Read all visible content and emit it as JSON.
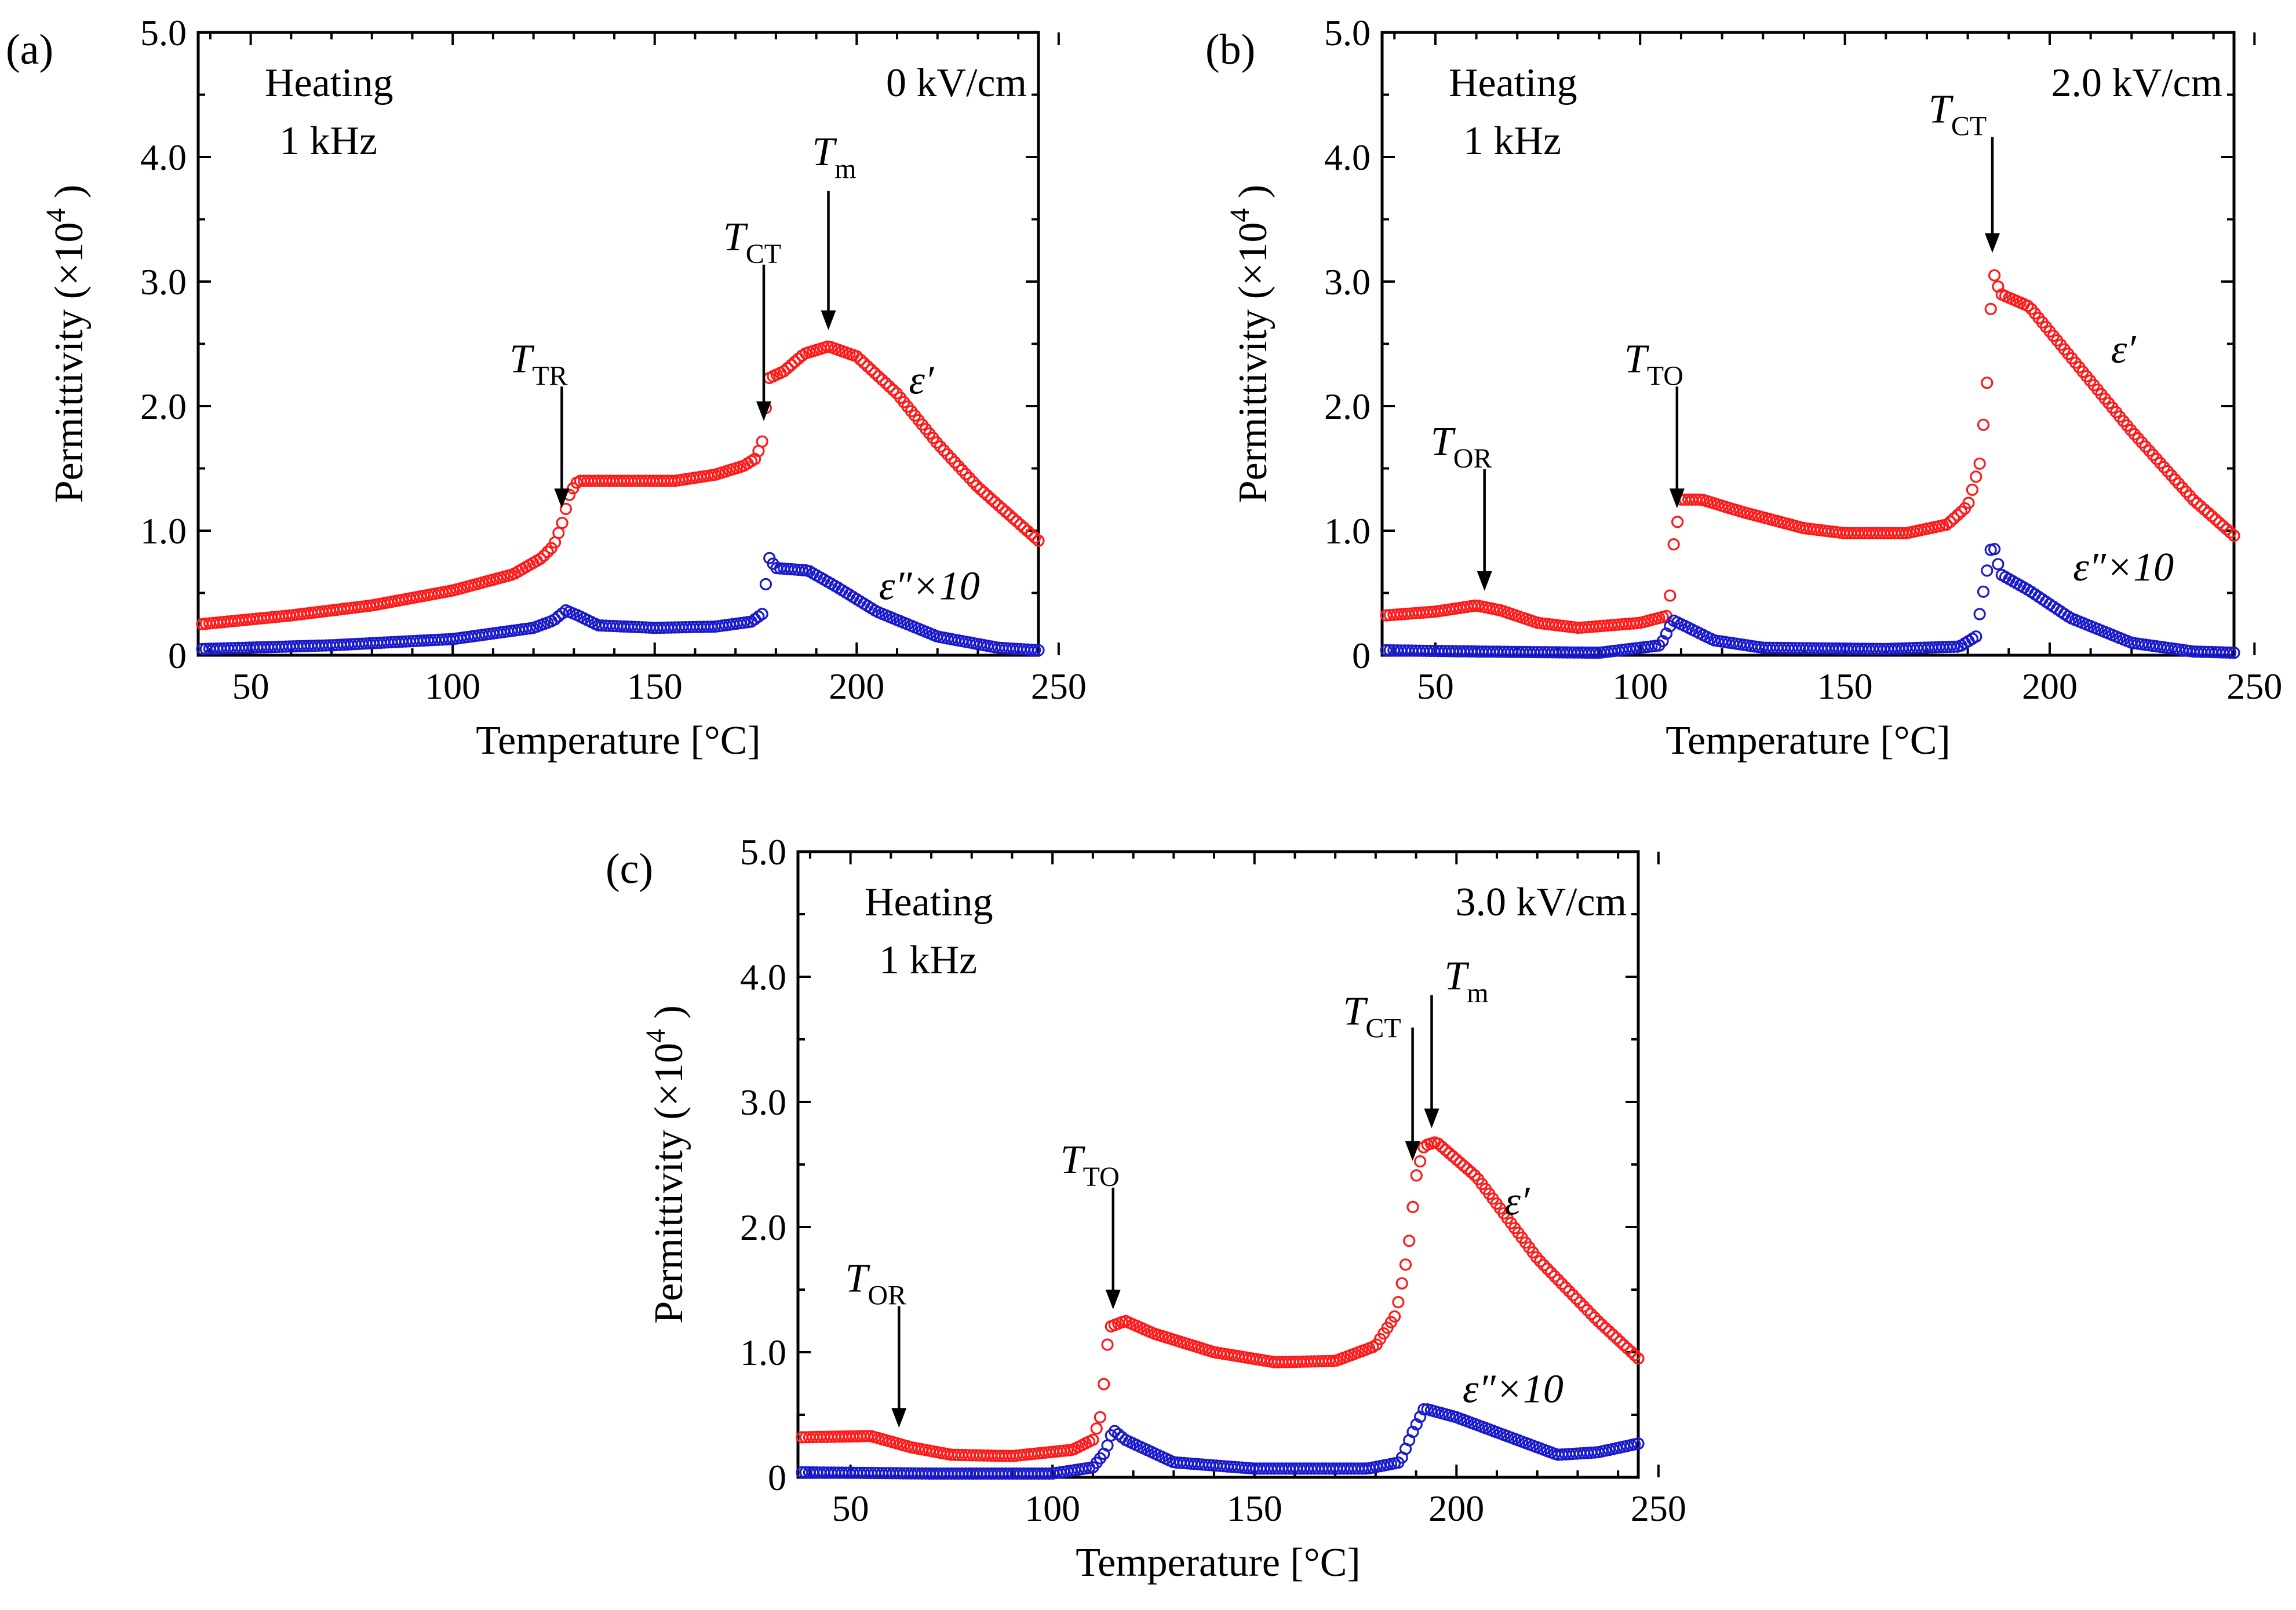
{
  "colors": {
    "eps_real": "#ff1a1a",
    "eps_imag": "#1a1acc",
    "axis": "#000000"
  },
  "chart_data": [
    {
      "panel": "(a)",
      "type": "scatter",
      "xlabel": "Temperature [°C]",
      "ylabel": "Permittivity (×10⁴)",
      "ylabel_main": "Permittivity (×10",
      "ylabel_exp": "4",
      "ylabel_close": ")",
      "xlim": [
        37,
        245
      ],
      "ylim": [
        0,
        5.0
      ],
      "xticks": [
        "50",
        "100",
        "150",
        "200",
        "250"
      ],
      "xtick_values": [
        50,
        100,
        150,
        200,
        250
      ],
      "yticks": [
        "0",
        "1.0",
        "2.0",
        "3.0",
        "4.0",
        "5.0"
      ],
      "ytick_values": [
        0,
        1,
        2,
        3,
        4,
        5
      ],
      "condition_lines": [
        "Heating",
        "1 kHz"
      ],
      "field": "0 kV/cm",
      "series": [
        {
          "name": "ε′",
          "label_main": "ε′",
          "color_key": "eps_real",
          "knots": [
            [
              38,
              0.25
            ],
            [
              60,
              0.32
            ],
            [
              80,
              0.4
            ],
            [
              100,
              0.52
            ],
            [
              115,
              0.65
            ],
            [
              122,
              0.78
            ],
            [
              125,
              0.88
            ],
            [
              127,
              1.05
            ],
            [
              129,
              1.3
            ],
            [
              131,
              1.4
            ],
            [
              140,
              1.4
            ],
            [
              155,
              1.4
            ],
            [
              165,
              1.45
            ],
            [
              172,
              1.52
            ],
            [
              175,
              1.58
            ],
            [
              177,
              1.75
            ],
            [
              178,
              2.22
            ],
            [
              182,
              2.28
            ],
            [
              187,
              2.42
            ],
            [
              193,
              2.48
            ],
            [
              200,
              2.4
            ],
            [
              210,
              2.1
            ],
            [
              220,
              1.7
            ],
            [
              230,
              1.35
            ],
            [
              245,
              0.92
            ]
          ]
        },
        {
          "name": "ε″×10",
          "label_main": "ε″×10",
          "color_key": "eps_imag",
          "knots": [
            [
              38,
              0.05
            ],
            [
              70,
              0.08
            ],
            [
              100,
              0.13
            ],
            [
              120,
              0.22
            ],
            [
              125,
              0.28
            ],
            [
              128,
              0.36
            ],
            [
              131,
              0.32
            ],
            [
              136,
              0.24
            ],
            [
              150,
              0.22
            ],
            [
              165,
              0.23
            ],
            [
              174,
              0.27
            ],
            [
              177,
              0.34
            ],
            [
              178,
              0.8
            ],
            [
              180,
              0.7
            ],
            [
              188,
              0.68
            ],
            [
              195,
              0.55
            ],
            [
              205,
              0.35
            ],
            [
              220,
              0.15
            ],
            [
              235,
              0.06
            ],
            [
              245,
              0.04
            ]
          ]
        }
      ],
      "arrows": [
        {
          "label": "T",
          "sub": "TR",
          "x": 127
        },
        {
          "label": "T",
          "sub": "CT",
          "x": 177
        },
        {
          "label": "T",
          "sub": "m",
          "x": 193
        }
      ]
    },
    {
      "panel": "(b)",
      "type": "scatter",
      "xlabel": "Temperature [°C]",
      "ylabel": "Permittivity (×10⁴)",
      "ylabel_main": "Permittivity (×10",
      "ylabel_exp": "4",
      "ylabel_close": ")",
      "xlim": [
        37,
        245
      ],
      "ylim": [
        0,
        5.0
      ],
      "xticks": [
        "50",
        "100",
        "150",
        "200",
        "250"
      ],
      "xtick_values": [
        50,
        100,
        150,
        200,
        250
      ],
      "yticks": [
        "0",
        "1.0",
        "2.0",
        "3.0",
        "4.0",
        "5.0"
      ],
      "ytick_values": [
        0,
        1,
        2,
        3,
        4,
        5
      ],
      "condition_lines": [
        "Heating",
        "1 kHz"
      ],
      "field": "2.0 kV/cm",
      "series": [
        {
          "name": "ε′",
          "label_main": "ε′",
          "color_key": "eps_real",
          "knots": [
            [
              38,
              0.32
            ],
            [
              50,
              0.35
            ],
            [
              60,
              0.4
            ],
            [
              66,
              0.36
            ],
            [
              75,
              0.26
            ],
            [
              85,
              0.22
            ],
            [
              100,
              0.26
            ],
            [
              107,
              0.32
            ],
            [
              108,
              0.85
            ],
            [
              110,
              1.25
            ],
            [
              115,
              1.25
            ],
            [
              125,
              1.15
            ],
            [
              140,
              1.02
            ],
            [
              150,
              0.98
            ],
            [
              165,
              0.98
            ],
            [
              175,
              1.05
            ],
            [
              180,
              1.2
            ],
            [
              183,
              1.55
            ],
            [
              185,
              2.3
            ],
            [
              186,
              3.1
            ],
            [
              188,
              2.9
            ],
            [
              195,
              2.8
            ],
            [
              205,
              2.4
            ],
            [
              220,
              1.8
            ],
            [
              235,
              1.25
            ],
            [
              245,
              0.96
            ]
          ]
        },
        {
          "name": "ε″×10",
          "label_main": "ε″×10",
          "color_key": "eps_imag",
          "knots": [
            [
              38,
              0.04
            ],
            [
              60,
              0.03
            ],
            [
              90,
              0.02
            ],
            [
              105,
              0.08
            ],
            [
              108,
              0.28
            ],
            [
              110,
              0.25
            ],
            [
              118,
              0.12
            ],
            [
              130,
              0.06
            ],
            [
              160,
              0.05
            ],
            [
              178,
              0.07
            ],
            [
              182,
              0.15
            ],
            [
              184,
              0.55
            ],
            [
              186,
              0.92
            ],
            [
              188,
              0.65
            ],
            [
              195,
              0.52
            ],
            [
              205,
              0.3
            ],
            [
              220,
              0.1
            ],
            [
              235,
              0.03
            ],
            [
              245,
              0.02
            ]
          ]
        }
      ],
      "arrows": [
        {
          "label": "T",
          "sub": "OR",
          "x": 62
        },
        {
          "label": "T",
          "sub": "TO",
          "x": 109
        },
        {
          "label": "T",
          "sub": "CT",
          "x": 186
        }
      ]
    },
    {
      "panel": "(c)",
      "type": "scatter",
      "xlabel": "Temperature [°C]",
      "ylabel": "Permittivity (×10⁴)",
      "ylabel_main": "Permittivity (×10",
      "ylabel_exp": "4",
      "ylabel_close": ")",
      "xlim": [
        37,
        245
      ],
      "ylim": [
        0,
        5.0
      ],
      "xticks": [
        "50",
        "100",
        "150",
        "200",
        "250"
      ],
      "xtick_values": [
        50,
        100,
        150,
        200,
        250
      ],
      "yticks": [
        "0",
        "1.0",
        "2.0",
        "3.0",
        "4.0",
        "5.0"
      ],
      "ytick_values": [
        0,
        1,
        2,
        3,
        4,
        5
      ],
      "condition_lines": [
        "Heating",
        "1 kHz"
      ],
      "field": "3.0 kV/cm",
      "series": [
        {
          "name": "ε′",
          "label_main": "ε′",
          "color_key": "eps_real",
          "knots": [
            [
              38,
              0.32
            ],
            [
              55,
              0.33
            ],
            [
              65,
              0.24
            ],
            [
              75,
              0.18
            ],
            [
              90,
              0.17
            ],
            [
              105,
              0.22
            ],
            [
              110,
              0.3
            ],
            [
              112,
              0.5
            ],
            [
              114,
              1.2
            ],
            [
              118,
              1.25
            ],
            [
              125,
              1.15
            ],
            [
              140,
              1.0
            ],
            [
              155,
              0.92
            ],
            [
              170,
              0.93
            ],
            [
              180,
              1.05
            ],
            [
              185,
              1.3
            ],
            [
              188,
              1.8
            ],
            [
              190,
              2.4
            ],
            [
              192,
              2.65
            ],
            [
              195,
              2.68
            ],
            [
              205,
              2.4
            ],
            [
              220,
              1.75
            ],
            [
              235,
              1.25
            ],
            [
              245,
              0.95
            ]
          ]
        },
        {
          "name": "ε″×10",
          "label_main": "ε″×10",
          "color_key": "eps_imag",
          "knots": [
            [
              38,
              0.04
            ],
            [
              70,
              0.03
            ],
            [
              100,
              0.03
            ],
            [
              110,
              0.08
            ],
            [
              113,
              0.2
            ],
            [
              115,
              0.38
            ],
            [
              118,
              0.3
            ],
            [
              130,
              0.12
            ],
            [
              150,
              0.07
            ],
            [
              178,
              0.07
            ],
            [
              186,
              0.12
            ],
            [
              189,
              0.35
            ],
            [
              192,
              0.55
            ],
            [
              200,
              0.48
            ],
            [
              215,
              0.3
            ],
            [
              225,
              0.18
            ],
            [
              235,
              0.2
            ],
            [
              245,
              0.27
            ]
          ]
        }
      ],
      "arrows": [
        {
          "label": "T",
          "sub": "OR",
          "x": 62
        },
        {
          "label": "T",
          "sub": "TO",
          "x": 115
        },
        {
          "label": "T",
          "sub": "CT",
          "x": 190
        },
        {
          "label": "T",
          "sub": "m",
          "x": 193
        }
      ]
    }
  ]
}
